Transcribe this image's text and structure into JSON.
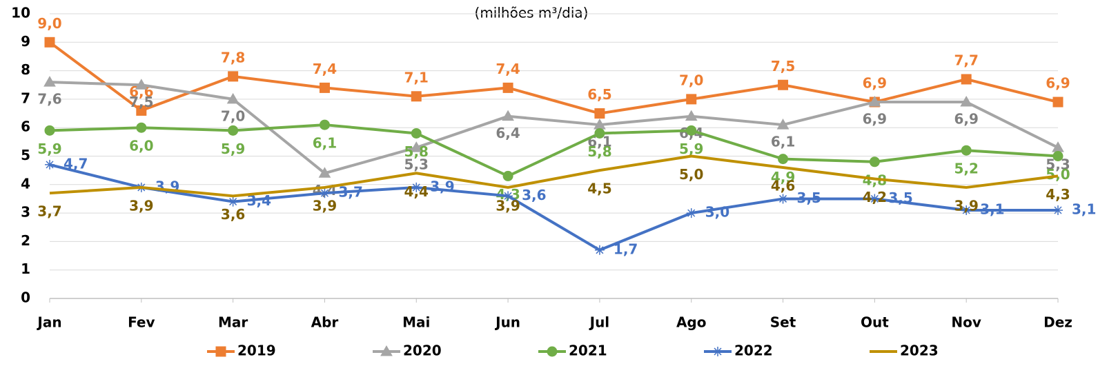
{
  "chart_data": {
    "type": "line",
    "subtitle": "(milhões m³/dia)",
    "categories": [
      "Jan",
      "Fev",
      "Mar",
      "Abr",
      "Mai",
      "Jun",
      "Jul",
      "Ago",
      "Set",
      "Out",
      "Nov",
      "Dez"
    ],
    "ylim": [
      0,
      10
    ],
    "yticks": [
      0,
      1,
      2,
      3,
      4,
      5,
      6,
      7,
      8,
      9,
      10
    ],
    "grid": true,
    "legend": "bottom",
    "series": [
      {
        "name": "2019",
        "color": "#ED7D31",
        "label_color": "#ED7D31",
        "marker": "square",
        "values": [
          9.0,
          6.6,
          7.8,
          7.4,
          7.1,
          7.4,
          6.5,
          7.0,
          7.5,
          6.9,
          7.7,
          6.9
        ],
        "value_labels": [
          "9,0",
          "6,6",
          "7,8",
          "7,4",
          "7,1",
          "7,4",
          "6,5",
          "7,0",
          "7,5",
          "6,9",
          "7,7",
          "6,9"
        ]
      },
      {
        "name": "2020",
        "color": "#A5A5A5",
        "label_color": "#7F7F7F",
        "marker": "triangle",
        "values": [
          7.6,
          7.5,
          7.0,
          4.4,
          5.3,
          6.4,
          6.1,
          6.4,
          6.1,
          6.9,
          6.9,
          5.3
        ],
        "value_labels": [
          "7,6",
          "7,5",
          "7,0",
          "4,4",
          "5,3",
          "6,4",
          "6,1",
          "6,4",
          "6,1",
          "6,9",
          "6,9",
          "5,3"
        ]
      },
      {
        "name": "2021",
        "color": "#70AD47",
        "label_color": "#70AD47",
        "marker": "circle",
        "values": [
          5.9,
          6.0,
          5.9,
          6.1,
          5.8,
          4.3,
          5.8,
          5.9,
          4.9,
          4.8,
          5.2,
          5.0
        ],
        "value_labels": [
          "5,9",
          "6,0",
          "5,9",
          "6,1",
          "5,8",
          "4,3",
          "5,8",
          "5,9",
          "4,9",
          "4,8",
          "5,2",
          "5,0"
        ]
      },
      {
        "name": "2022",
        "color": "#4472C4",
        "label_color": "#4472C4",
        "marker": "star",
        "values": [
          4.7,
          3.9,
          3.4,
          3.7,
          3.9,
          3.6,
          1.7,
          3.0,
          3.5,
          3.5,
          3.1,
          3.1
        ],
        "value_labels": [
          "4,7",
          "3,9",
          "3,4",
          "3,7",
          "3,9",
          "3,6",
          "1,7",
          "3,0",
          "3,5",
          "3,5",
          "3,1",
          "3,1"
        ]
      },
      {
        "name": "2023",
        "color": "#BF9000",
        "label_color": "#7F6000",
        "marker": "none",
        "values": [
          3.7,
          3.9,
          3.6,
          3.9,
          4.4,
          3.9,
          4.5,
          5.0,
          4.6,
          4.2,
          3.9,
          4.3
        ],
        "value_labels": [
          "3,7",
          "3,9",
          "3,6",
          "3,9",
          "4,4",
          "3,9",
          "4,5",
          "5,0",
          "4,6",
          "4,2",
          "3,9",
          "4,3"
        ]
      }
    ]
  }
}
